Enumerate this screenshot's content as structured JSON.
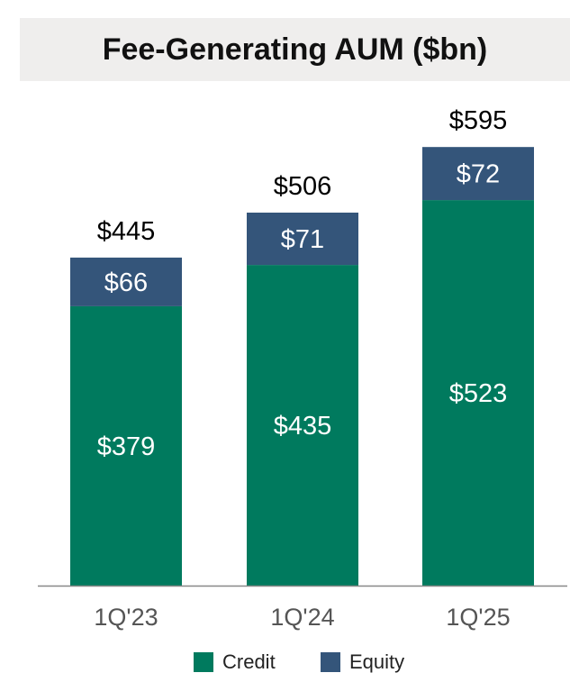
{
  "chart_data": {
    "type": "bar",
    "stacked": true,
    "title": "Fee-Generating AUM ($bn)",
    "categories": [
      "1Q'23",
      "1Q'24",
      "1Q'25"
    ],
    "series": [
      {
        "name": "Credit",
        "values": [
          379,
          435,
          523
        ],
        "labels": [
          "$379",
          "$435",
          "$523"
        ],
        "color": "#007a5e"
      },
      {
        "name": "Equity",
        "values": [
          66,
          71,
          72
        ],
        "labels": [
          "$66",
          "$71",
          "$72"
        ],
        "color": "#34557a"
      }
    ],
    "totals": [
      445,
      506,
      595
    ],
    "total_labels": [
      "$445",
      "$506",
      "$595"
    ],
    "ylim": [
      0,
      660
    ],
    "grid": false,
    "legend_position": "bottom-center"
  }
}
